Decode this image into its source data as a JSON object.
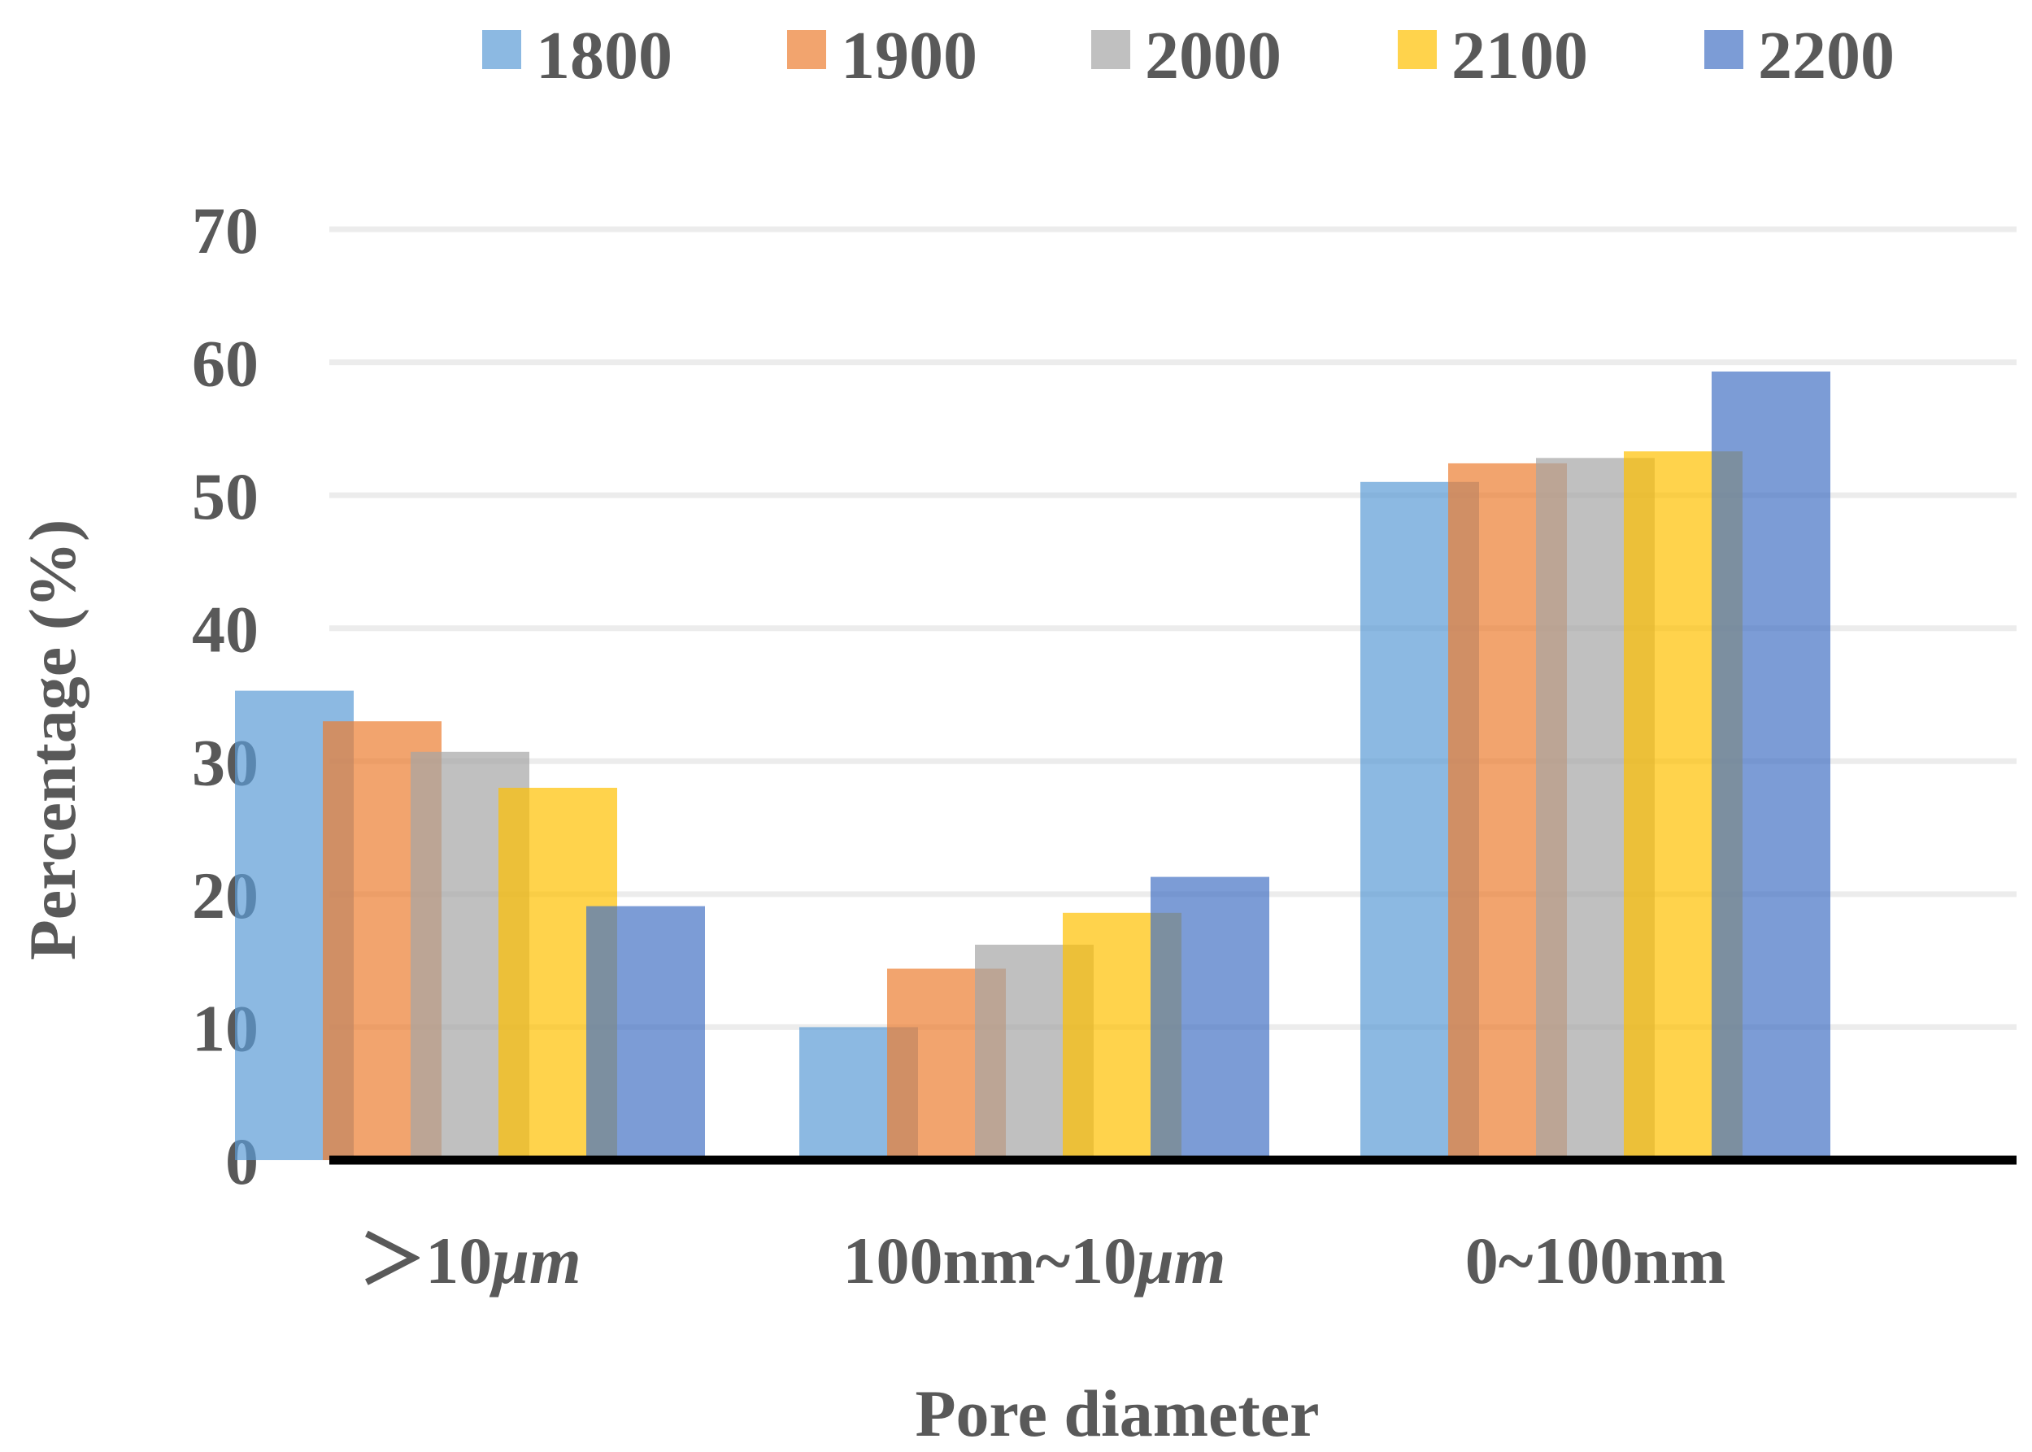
{
  "chart_data": {
    "type": "bar",
    "title": "",
    "xlabel": "Pore diameter",
    "ylabel": "Percentage (%)",
    "ylim": [
      0,
      70
    ],
    "yticks": [
      "0",
      "10",
      "20",
      "30",
      "40",
      "50",
      "60",
      "70"
    ],
    "grid": true,
    "legend_position": "top",
    "categories": [
      {
        "prefix": "＞10",
        "unit": "μm"
      },
      {
        "prefix": "100nm~10",
        "unit": "μm"
      },
      {
        "prefix": "0~100nm",
        "unit": ""
      }
    ],
    "series": [
      {
        "name": "1800",
        "color": "#5B9BD5",
        "values": [
          35.3,
          10.0,
          51.0
        ]
      },
      {
        "name": "1900",
        "color": "#ED7D31",
        "values": [
          33.0,
          14.4,
          52.4
        ]
      },
      {
        "name": "2000",
        "color": "#A5A5A5",
        "values": [
          30.7,
          16.2,
          52.8
        ]
      },
      {
        "name": "2100",
        "color": "#FFC000",
        "values": [
          28.0,
          18.6,
          53.3
        ]
      },
      {
        "name": "2200",
        "color": "#4472C4",
        "values": [
          19.1,
          21.3,
          59.3
        ]
      }
    ]
  }
}
